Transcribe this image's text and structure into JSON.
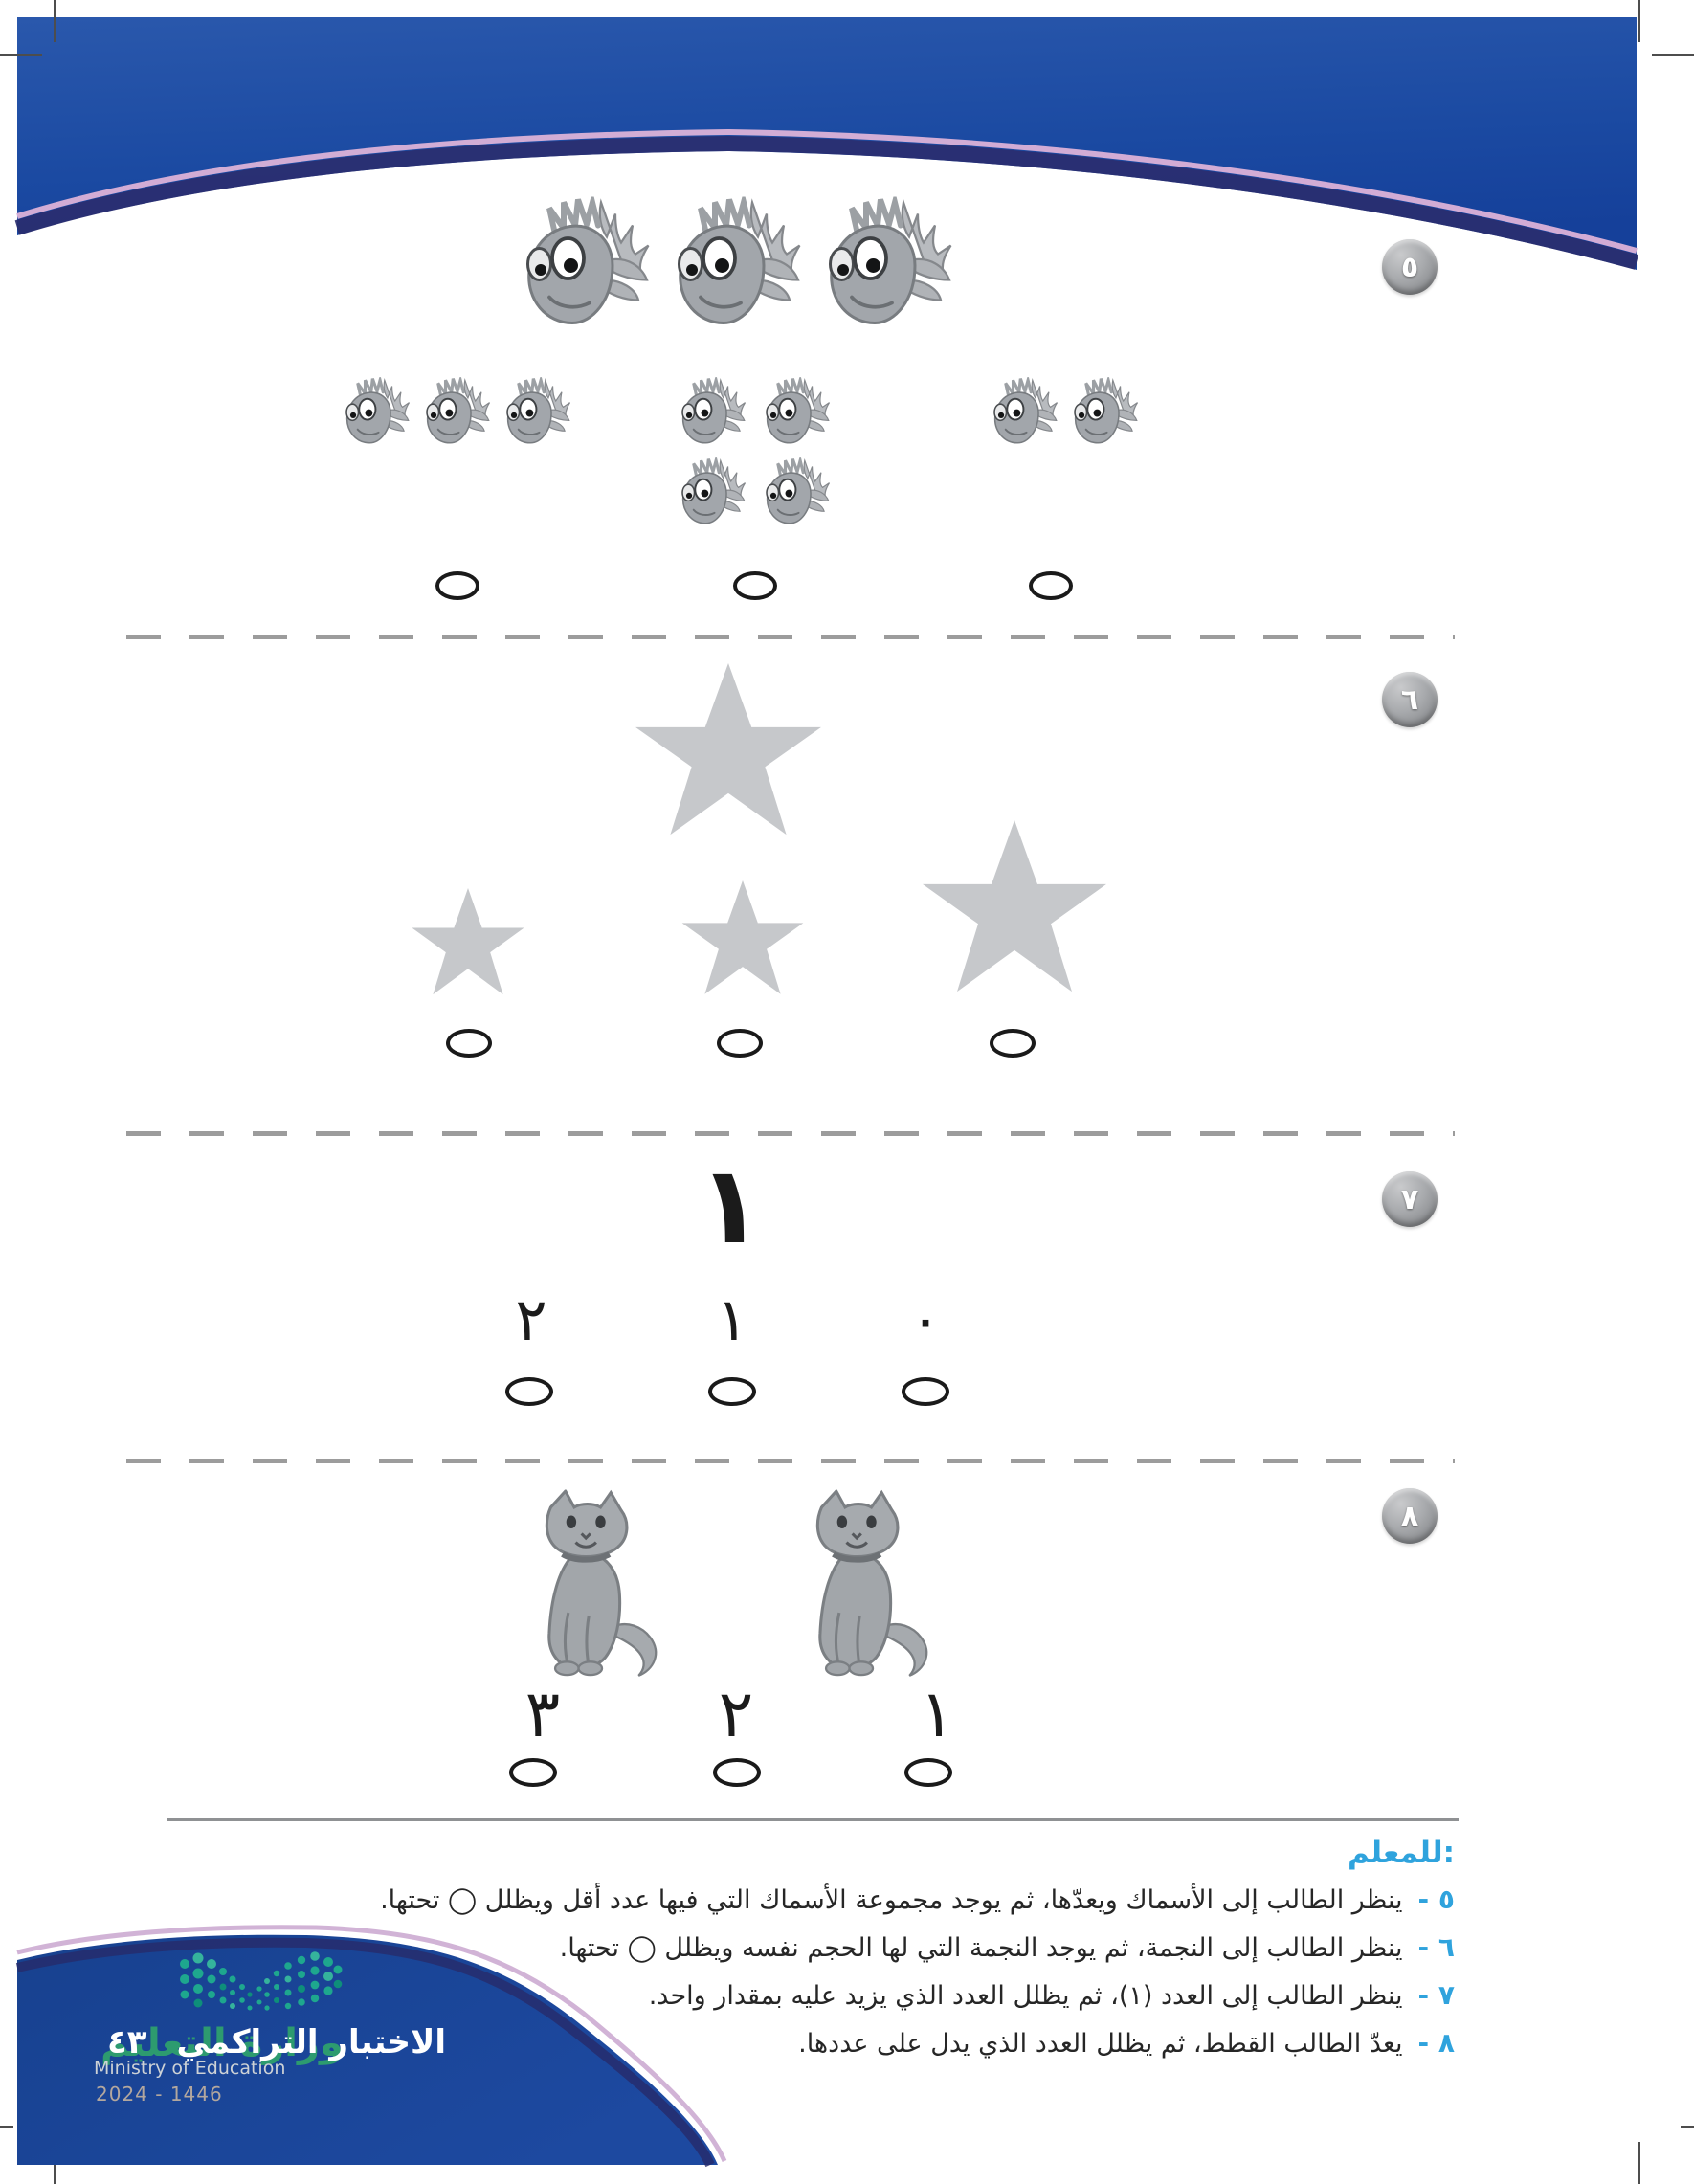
{
  "questions": [
    {
      "badge": "٥",
      "kind": "fish",
      "prompt_fish_count": 3,
      "options": [
        {
          "fish_count": 3
        },
        {
          "fish_count": 4
        },
        {
          "fish_count": 2
        }
      ]
    },
    {
      "badge": "٦",
      "kind": "stars",
      "prompt_size": "xlarge",
      "options": [
        {
          "size": "small"
        },
        {
          "size": "medium"
        },
        {
          "size": "large"
        }
      ]
    },
    {
      "badge": "٧",
      "kind": "numbers",
      "prompt": "١",
      "options": [
        {
          "label": "٢"
        },
        {
          "label": "١"
        },
        {
          "label": "٠"
        }
      ]
    },
    {
      "badge": "٨",
      "kind": "cats",
      "prompt_cat_count": 2,
      "options": [
        {
          "label": "٣"
        },
        {
          "label": "٢"
        },
        {
          "label": "١"
        }
      ]
    }
  ],
  "teacher": {
    "heading": "للمعلم:",
    "notes": [
      {
        "num": "٥ -",
        "text": "ينظر الطالب إلى الأسماك ويعدّها، ثم يوجد مجموعة الأسماك التي فيها عدد أقل ويظلل ◯ تحتها."
      },
      {
        "num": "٦ -",
        "text": "ينظر الطالب إلى النجمة، ثم يوجد النجمة التي لها الحجم نفسه ويظلل ◯ تحتها."
      },
      {
        "num": "٧ -",
        "text": "ينظر الطالب إلى العدد (١)، ثم يظلل العدد الذي يزيد عليه بمقدار واحد."
      },
      {
        "num": "٨ -",
        "text": "يعدّ الطالب القطط، ثم يظلل العدد الذي يدل على عددها."
      }
    ]
  },
  "footer": {
    "exam_title": "الاختبار التراكمي",
    "page_number": "٤٣",
    "ministry_ar": "وزارة التعليم",
    "ministry_en": "Ministry of Education",
    "edition_years": "2024 - 1446"
  },
  "colors": {
    "header_blue_top": "#2a58ac",
    "header_blue_bottom": "#15409a",
    "stripe_pink": "#dcb2d8",
    "stripe_navy": "#2a2e6f",
    "badge_gray": "#9b9da0",
    "star_gray": "#c6c8cb",
    "teacher_accent": "#2fa3dd",
    "logo_green": "#1ea78e",
    "footer_blue": "#1a4295"
  }
}
